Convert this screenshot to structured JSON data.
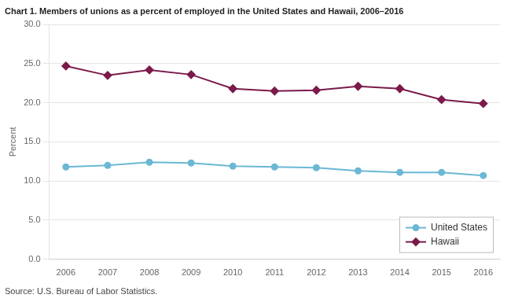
{
  "chart_data": {
    "type": "line",
    "title": "Chart 1. Members of unions as a percent of employed in the United States and Hawaii, 2006–2016",
    "ylabel": "Percent",
    "source": "Source: U.S. Bureau of Labor Statistics.",
    "x": [
      2006,
      2007,
      2008,
      2009,
      2010,
      2011,
      2012,
      2013,
      2014,
      2015,
      2016
    ],
    "series": [
      {
        "name": "United States",
        "color": "#6bb8d4",
        "marker": "circle",
        "values": [
          11.8,
          12.0,
          12.4,
          12.3,
          11.9,
          11.8,
          11.7,
          11.3,
          11.1,
          11.1,
          10.7
        ]
      },
      {
        "name": "Hawaii",
        "color": "#7b1a4b",
        "marker": "diamond",
        "values": [
          24.7,
          23.5,
          24.2,
          23.6,
          21.8,
          21.5,
          21.6,
          22.1,
          21.8,
          20.4,
          19.9
        ]
      }
    ],
    "xlim": [
      2005.6,
      2016.4
    ],
    "xticks": [
      2006,
      2007,
      2008,
      2009,
      2010,
      2011,
      2012,
      2013,
      2014,
      2015,
      2016
    ],
    "ylim": [
      0,
      30
    ],
    "yticks": [
      {
        "value": 0,
        "label": "0.0"
      },
      {
        "value": 5,
        "label": "5.0"
      },
      {
        "value": 10,
        "label": "10.0"
      },
      {
        "value": 15,
        "label": "15.0"
      },
      {
        "value": 20,
        "label": "20.0"
      },
      {
        "value": 25,
        "label": "25.0"
      },
      {
        "value": 30,
        "label": "30.0"
      }
    ],
    "grid": "y",
    "legend": "lower right"
  }
}
